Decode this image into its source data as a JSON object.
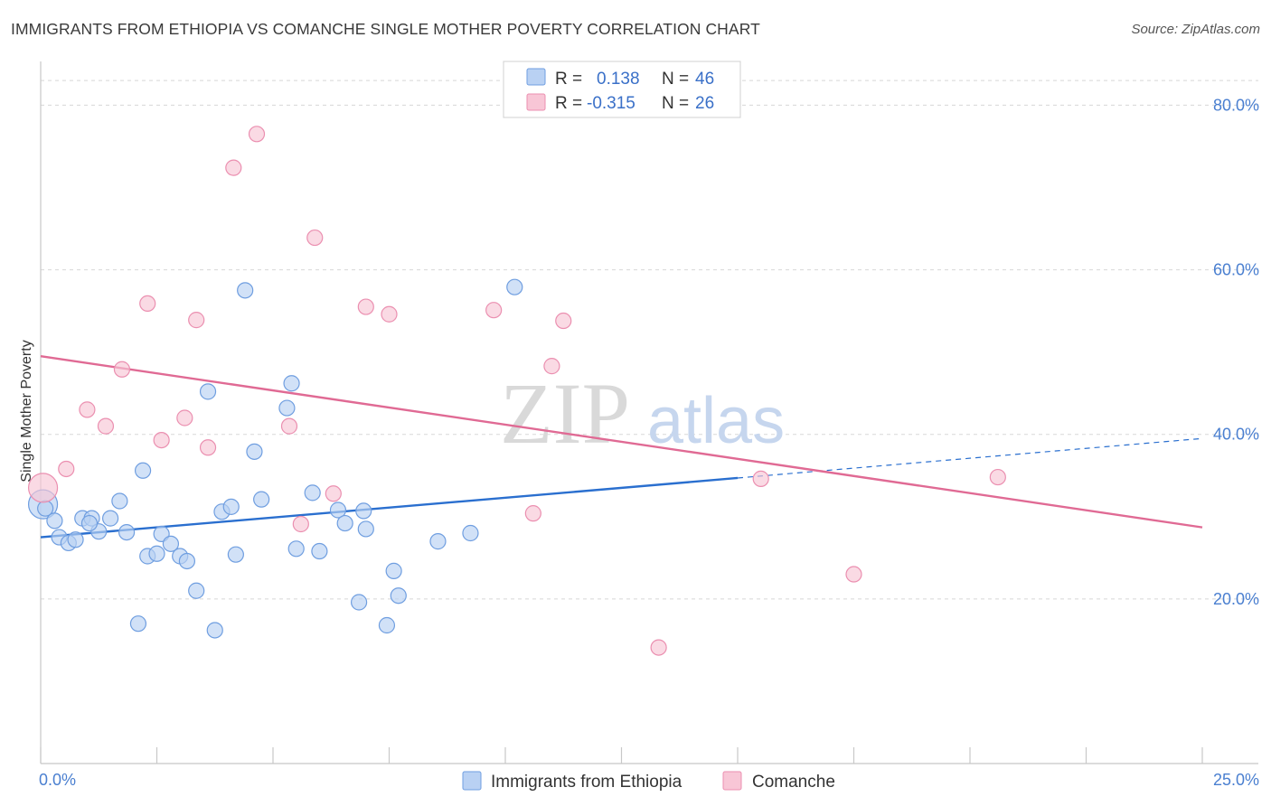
{
  "title": "IMMIGRANTS FROM ETHIOPIA VS COMANCHE SINGLE MOTHER POVERTY CORRELATION CHART",
  "source": "Source: ZipAtlas.com",
  "watermark": {
    "zip": "ZIP",
    "atlas": "atlas"
  },
  "colors": {
    "blue_fill": "#b9d1f3",
    "blue_stroke": "#6f9ee0",
    "blue_line": "#2a6fcf",
    "pink_fill": "#f8c6d6",
    "pink_stroke": "#eb8fb0",
    "pink_line": "#e06a94",
    "grid": "#d8d8d8",
    "tick_label": "#4a7fd0"
  },
  "legend": {
    "rows": [
      {
        "r_label": "R =",
        "r_value": "0.138",
        "n_label": "N =",
        "n_value": "46"
      },
      {
        "r_label": "R =",
        "r_value": "-0.315",
        "n_label": "N =",
        "n_value": "26"
      }
    ]
  },
  "chart_data": {
    "type": "scatter",
    "title": "IMMIGRANTS FROM ETHIOPIA VS COMANCHE SINGLE MOTHER POVERTY CORRELATION CHART",
    "xlabel": "",
    "ylabel": "Single Mother Poverty",
    "xlim": [
      0,
      25
    ],
    "ylim": [
      0,
      84
    ],
    "x_tick_labels": [
      "0.0%",
      "25.0%"
    ],
    "y_ticks": [
      20,
      40,
      60,
      80
    ],
    "y_tick_labels": [
      "20.0%",
      "40.0%",
      "60.0%",
      "80.0%"
    ],
    "grid": true,
    "legend_position": "top-center",
    "series": [
      {
        "name": "Immigrants from Ethiopia",
        "color": "#6f9ee0",
        "points": [
          [
            0.05,
            31.5
          ],
          [
            0.3,
            29.5
          ],
          [
            0.4,
            27.5
          ],
          [
            0.6,
            26.8
          ],
          [
            0.75,
            27.2
          ],
          [
            0.9,
            29.8
          ],
          [
            1.1,
            29.8
          ],
          [
            1.25,
            28.2
          ],
          [
            1.5,
            29.8
          ],
          [
            1.7,
            31.9
          ],
          [
            1.85,
            28.1
          ],
          [
            2.1,
            17.0
          ],
          [
            2.2,
            35.6
          ],
          [
            2.3,
            25.2
          ],
          [
            2.5,
            25.5
          ],
          [
            2.6,
            27.9
          ],
          [
            2.8,
            26.7
          ],
          [
            3.0,
            25.2
          ],
          [
            3.15,
            24.6
          ],
          [
            3.35,
            21.0
          ],
          [
            3.6,
            45.2
          ],
          [
            3.75,
            16.2
          ],
          [
            3.9,
            30.6
          ],
          [
            4.1,
            31.2
          ],
          [
            4.2,
            25.4
          ],
          [
            4.4,
            57.5
          ],
          [
            4.6,
            37.9
          ],
          [
            4.75,
            32.1
          ],
          [
            5.3,
            43.2
          ],
          [
            5.4,
            46.2
          ],
          [
            5.5,
            26.1
          ],
          [
            5.85,
            32.9
          ],
          [
            6.0,
            25.8
          ],
          [
            6.4,
            30.8
          ],
          [
            6.55,
            29.2
          ],
          [
            6.85,
            19.6
          ],
          [
            6.95,
            30.7
          ],
          [
            7.0,
            28.5
          ],
          [
            7.45,
            16.8
          ],
          [
            7.6,
            23.4
          ],
          [
            7.7,
            20.4
          ],
          [
            8.55,
            27.0
          ],
          [
            9.25,
            28.0
          ],
          [
            10.2,
            57.9
          ],
          [
            0.1,
            31.0
          ],
          [
            1.05,
            29.2
          ]
        ]
      },
      {
        "name": "Comanche",
        "color": "#eb8fb0",
        "points": [
          [
            0.05,
            33.5
          ],
          [
            0.55,
            35.8
          ],
          [
            1.0,
            43.0
          ],
          [
            1.4,
            41.0
          ],
          [
            1.75,
            47.9
          ],
          [
            2.3,
            55.9
          ],
          [
            2.6,
            39.3
          ],
          [
            3.1,
            42.0
          ],
          [
            3.35,
            53.9
          ],
          [
            3.6,
            38.4
          ],
          [
            4.15,
            72.4
          ],
          [
            4.65,
            76.5
          ],
          [
            5.35,
            41.0
          ],
          [
            5.6,
            29.1
          ],
          [
            5.9,
            63.9
          ],
          [
            6.3,
            32.8
          ],
          [
            7.0,
            55.5
          ],
          [
            7.5,
            54.6
          ],
          [
            9.75,
            55.1
          ],
          [
            10.6,
            30.4
          ],
          [
            11.0,
            48.3
          ],
          [
            11.25,
            53.8
          ],
          [
            13.3,
            14.1
          ],
          [
            15.5,
            34.6
          ],
          [
            17.5,
            23.0
          ],
          [
            20.6,
            34.8
          ]
        ]
      }
    ],
    "trendlines": [
      {
        "series": "Immigrants from Ethiopia",
        "x": [
          0,
          15
        ],
        "y": [
          27.5,
          34.7
        ],
        "style": "solid",
        "extension": {
          "x": [
            15,
            25
          ],
          "y": [
            34.7,
            39.5
          ],
          "style": "dashed"
        }
      },
      {
        "series": "Comanche",
        "x": [
          0,
          25
        ],
        "y": [
          49.5,
          28.7
        ],
        "style": "solid"
      }
    ]
  }
}
